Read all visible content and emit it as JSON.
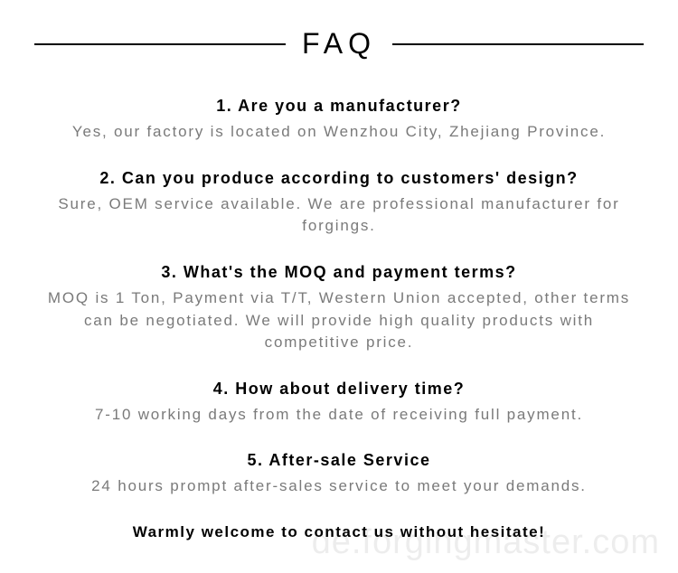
{
  "header": {
    "title": "FAQ"
  },
  "faqs": [
    {
      "question": "1. Are you a manufacturer?",
      "answer": "Yes, our factory is located on Wenzhou City, Zhejiang Province."
    },
    {
      "question": "2. Can you produce according to customers' design?",
      "answer": "Sure, OEM service available. We are professional manufacturer for forgings."
    },
    {
      "question": "3. What's the MOQ and payment terms?",
      "answer": "MOQ is 1 Ton, Payment via T/T, Western Union accepted, other terms can be negotiated. We will provide high quality products with competitive price."
    },
    {
      "question": "4. How about delivery time?",
      "answer": "7-10 working days from the date of receiving full payment."
    },
    {
      "question": "5. After-sale Service",
      "answer": "24 hours prompt after-sales service to meet your demands."
    }
  ],
  "closing": "Warmly welcome to contact us without hesitate!",
  "watermark": "de.forgingmaster.com",
  "style": {
    "background_color": "#ffffff",
    "heading_color": "#000000",
    "answer_color": "#7a7a7a",
    "line_color": "#000000",
    "watermark_color": "rgba(0,0,0,0.07)",
    "title_fontsize": 32,
    "question_fontsize": 18,
    "answer_fontsize": 17,
    "closing_fontsize": 17,
    "watermark_fontsize": 38
  }
}
